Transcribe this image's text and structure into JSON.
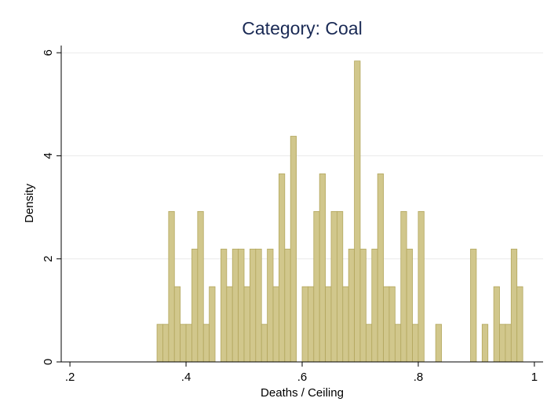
{
  "chart_data": {
    "type": "histogram",
    "title": "Category: Coal",
    "xlabel": "Deaths / Ceiling",
    "ylabel": "Density",
    "bins": [
      0.35,
      0.36,
      0.37,
      0.38,
      0.39,
      0.4,
      0.41,
      0.42,
      0.43,
      0.44,
      0.45,
      0.46,
      0.47,
      0.48,
      0.49,
      0.5,
      0.51,
      0.52,
      0.53,
      0.54,
      0.55,
      0.56,
      0.57,
      0.58,
      0.59,
      0.6,
      0.61,
      0.62,
      0.63,
      0.64,
      0.65,
      0.66,
      0.67,
      0.68,
      0.69,
      0.7,
      0.71,
      0.72,
      0.73,
      0.74,
      0.75,
      0.76,
      0.77,
      0.78,
      0.79,
      0.8,
      0.81,
      0.82,
      0.83,
      0.84,
      0.85,
      0.86,
      0.87,
      0.88,
      0.89,
      0.9,
      0.91,
      0.92,
      0.93,
      0.94,
      0.95,
      0.96,
      0.97,
      0.98
    ],
    "values": [
      0.73,
      0.73,
      2.92,
      1.46,
      0.73,
      0.73,
      2.19,
      2.92,
      0.73,
      1.46,
      0,
      2.19,
      1.46,
      2.19,
      2.19,
      1.46,
      2.19,
      2.19,
      0.73,
      2.19,
      1.46,
      3.65,
      2.19,
      4.38,
      0,
      1.46,
      1.46,
      2.92,
      3.65,
      1.46,
      2.92,
      2.92,
      1.46,
      2.19,
      5.84,
      2.19,
      0.73,
      2.19,
      3.65,
      1.46,
      1.46,
      0.73,
      2.92,
      2.19,
      0.73,
      2.92,
      0,
      0,
      0.73,
      0,
      0,
      0,
      0,
      0,
      2.19,
      0,
      0.73,
      0,
      1.46,
      0.73,
      0.73,
      2.19,
      1.46
    ],
    "color": "#d1c78c",
    "edgecolor": "#b3a75e",
    "xlim": [
      0.185,
      1.015
    ],
    "ylim": [
      0,
      6.14
    ],
    "xticks": [
      {
        "value": 0.2,
        "label": ".2"
      },
      {
        "value": 0.4,
        "label": ".4"
      },
      {
        "value": 0.6,
        "label": ".6"
      },
      {
        "value": 0.8,
        "label": ".8"
      },
      1
    ],
    "yticks": [
      0,
      2,
      4,
      6
    ],
    "grid": true
  }
}
